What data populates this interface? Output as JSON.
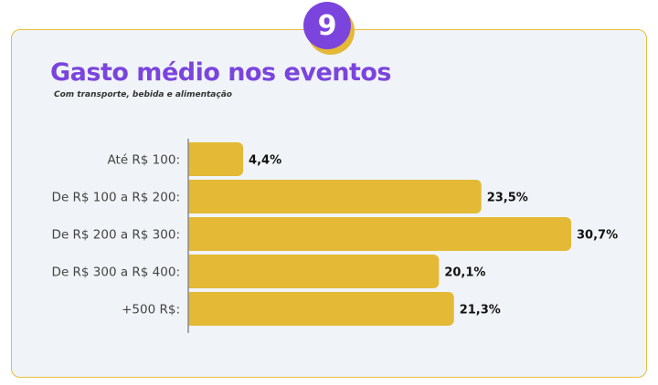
{
  "badge": {
    "number": "9"
  },
  "chart_data": {
    "type": "bar",
    "orientation": "horizontal",
    "title": "Gasto médio nos eventos",
    "subtitle": "Com transporte, bebida e alimentação",
    "categories": [
      "Até R$ 100:",
      "De R$ 100 a R$ 200:",
      "De R$ 200 a R$ 300:",
      "De R$ 300 a R$ 400:",
      "+500 R$:"
    ],
    "values": [
      4.4,
      23.5,
      30.7,
      20.1,
      21.3
    ],
    "data_labels": [
      "4,4%",
      "23,5%",
      "30,7%",
      "20,1%",
      "21,3%"
    ],
    "unit": "%",
    "grid": false,
    "colors": {
      "bar": "#e3b936",
      "title": "#7b44dd",
      "border": "#e7bd3a",
      "background": "#f0f4f8"
    }
  }
}
